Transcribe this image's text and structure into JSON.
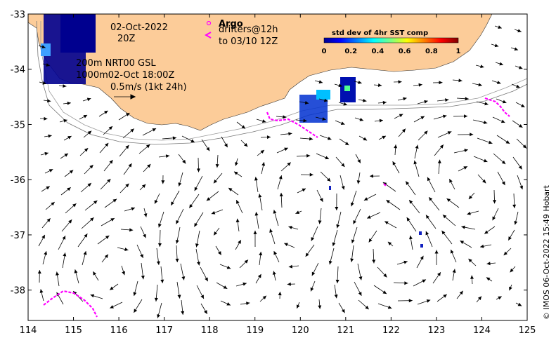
{
  "map": {
    "date_line1": "02-Oct-2022",
    "date_line2": "20Z",
    "contour_line1": "200m  NRT00 GSL",
    "contour_line2": "1000m02-Oct 18:00Z",
    "scale_label": "0.5m/s (1kt 24h)",
    "legend_argo": "Argo",
    "legend_drifters1": "drifters@12h",
    "legend_drifters2": "to 03/10 12Z",
    "colorbar_title": "std dev of 4hr SST comp",
    "colorbar_ticks": [
      "0",
      "0.2",
      "0.4",
      "0.6",
      "0.8",
      "1"
    ],
    "copyright": "© IMOS 06-Oct-2022 15:49 Hobart",
    "x_ticks": [
      "114",
      "115",
      "116",
      "117",
      "118",
      "119",
      "120",
      "121",
      "122",
      "123",
      "124",
      "125"
    ],
    "y_ticks": [
      "-33",
      "-34",
      "-35",
      "-36",
      "-37",
      "-38"
    ],
    "x_range": [
      114,
      125
    ],
    "y_range": [
      -38.55,
      -33
    ],
    "colors": {
      "land": "#fccc99",
      "drifter": "#ff00ff",
      "arrow": "#000000",
      "contour": "#888888"
    }
  }
}
